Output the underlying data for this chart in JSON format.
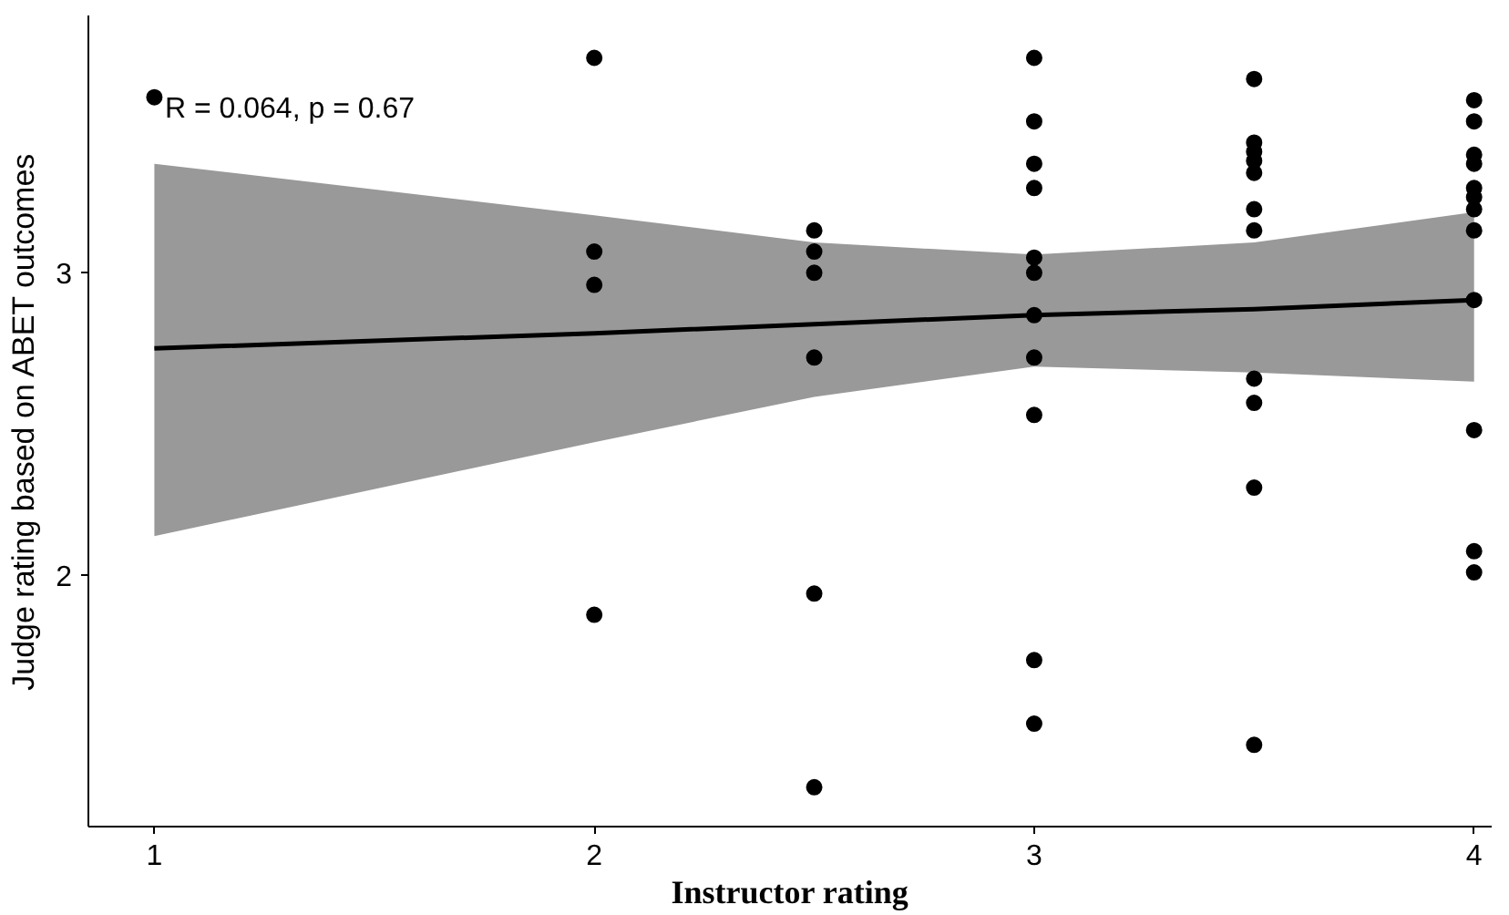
{
  "chart_data": {
    "type": "scatter",
    "xlabel": "Instructor rating",
    "ylabel": "Judge rating based on ABET outcomes",
    "xlim": [
      0.85,
      4.04
    ],
    "ylim": [
      1.17,
      3.85
    ],
    "xticks": [
      1,
      2,
      3,
      4
    ],
    "yticks": [
      2,
      3
    ],
    "grid": false,
    "marker": "circle",
    "annotations": [
      "R = 0.064, p = 0.67"
    ],
    "series": [
      {
        "color": "#000000",
        "x": [
          1,
          2,
          2,
          2,
          2,
          2.5,
          2.5,
          2.5,
          2.5,
          2.5,
          2.5,
          3,
          3,
          3,
          3,
          3,
          3,
          3,
          3,
          3,
          3,
          3,
          3.5,
          3.5,
          3.5,
          3.5,
          3.5,
          3.5,
          3.5,
          3.5,
          3.5,
          3.5,
          3.5,
          4,
          4,
          4,
          4,
          4,
          4,
          4,
          4,
          4,
          4,
          4,
          4
        ],
        "values": [
          3.58,
          3.71,
          3.07,
          2.96,
          1.87,
          3.14,
          3.07,
          3.0,
          2.72,
          1.94,
          1.3,
          3.71,
          3.5,
          3.36,
          3.28,
          3.05,
          3.0,
          2.86,
          2.72,
          2.53,
          1.72,
          1.51,
          3.64,
          3.43,
          3.4,
          3.37,
          3.33,
          3.21,
          3.14,
          2.65,
          2.57,
          2.29,
          1.44,
          3.57,
          3.5,
          3.39,
          3.36,
          3.28,
          3.25,
          3.21,
          3.14,
          2.91,
          2.48,
          2.08,
          2.01
        ]
      },
      {
        "type": "line",
        "marker": "none",
        "color": "#000000",
        "x": [
          1,
          2,
          2.5,
          3,
          3.5,
          4
        ],
        "values": [
          2.75,
          2.8,
          2.83,
          2.86,
          2.88,
          2.91
        ],
        "lower": [
          2.13,
          2.44,
          2.59,
          2.69,
          2.67,
          2.64
        ],
        "upper": [
          3.36,
          3.19,
          3.1,
          3.06,
          3.1,
          3.2
        ]
      }
    ]
  }
}
